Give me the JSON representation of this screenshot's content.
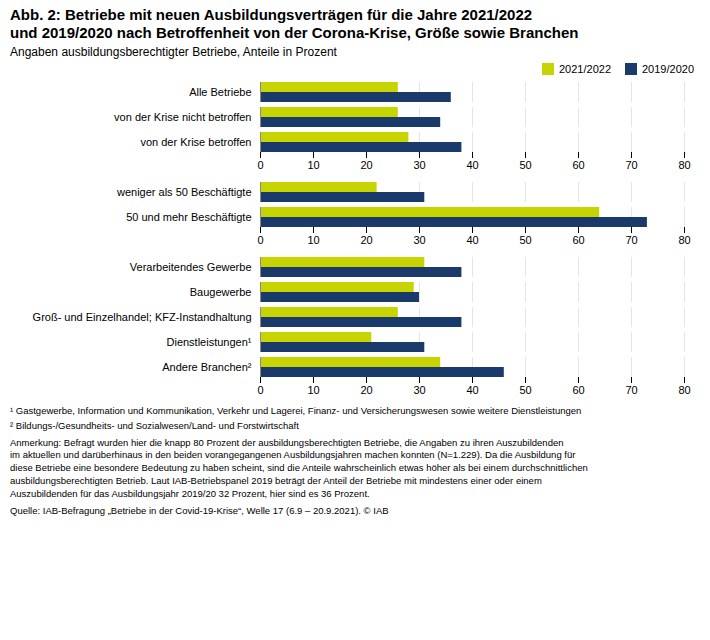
{
  "chart_data": {
    "type": "bar",
    "orientation": "horizontal",
    "title": "Abb. 2: Betriebe mit neuen Ausbildungsverträgen für die Jahre 2021/2022\nund 2019/2020 nach Betroffenheit von der Corona-Krise, Größe sowie Branchen",
    "subtitle": "Angaben ausbildungsberechtigter Betriebe, Anteile  in Prozent",
    "categories": [
      "Alle Betriebe",
      "von der Krise nicht betroffen",
      "von der Krise betroffen",
      null,
      "weniger als 50 Beschäftigte",
      "50 und mehr Beschäftigte",
      null,
      "Verarbeitendes Gewerbe",
      "Baugewerbe",
      "Groß- und Einzelhandel; KFZ-Instandhaltung",
      "Dienstleistungen¹",
      "Andere Branchen²"
    ],
    "series": [
      {
        "name": "2021/2022",
        "color": "#c8d400",
        "values": [
          26,
          26,
          28,
          null,
          22,
          64,
          null,
          31,
          29,
          26,
          21,
          34
        ]
      },
      {
        "name": "2019/2020",
        "color": "#1a3a6b",
        "values": [
          36,
          34,
          38,
          null,
          31,
          73,
          null,
          38,
          30,
          38,
          31,
          46
        ]
      }
    ],
    "xlim": [
      0,
      80
    ],
    "xticks": [
      0,
      10,
      20,
      30,
      40,
      50,
      60,
      70,
      80
    ],
    "grid": true,
    "legend": "upper right",
    "annotations": [
      "¹ Gastgewerbe, Information und Kommunikation, Verkehr und Lagerei, Finanz- und Versicherungswesen sowie weitere Dienstleistungen",
      "² Bildungs-/Gesundheits- und Sozialwesen/Land- und Forstwirtschaft",
      "Anmerkung: Befragt wurden hier die knapp 80 Prozent der ausbildungsberechtigten Betriebe, die Angaben zu ihren Auszubildenden\nim aktuellen und darüberhinaus in den beiden vorangegangenen Ausbildungsjahren machen konnten (N=1.229). Da die Ausbildung für\ndiese Betriebe eine besondere Bedeutung zu haben scheint, sind die Anteile wahrscheinlich etwas höher als bei einem durchschnittlichen\nausbildungsberechtigten Betrieb. Laut IAB-Betriebspanel 2019 beträgt der Anteil der Betriebe mit mindestens einer oder einem\nAuszubildenden für das Ausbildungsjahr 2019/20 32 Prozent, hier sind es 36 Prozent.",
      "Quelle: IAB-Befragung „Betriebe in der Covid-19-Krise“, Welle 17 (6.9 – 20.9.2021). © IAB"
    ]
  }
}
